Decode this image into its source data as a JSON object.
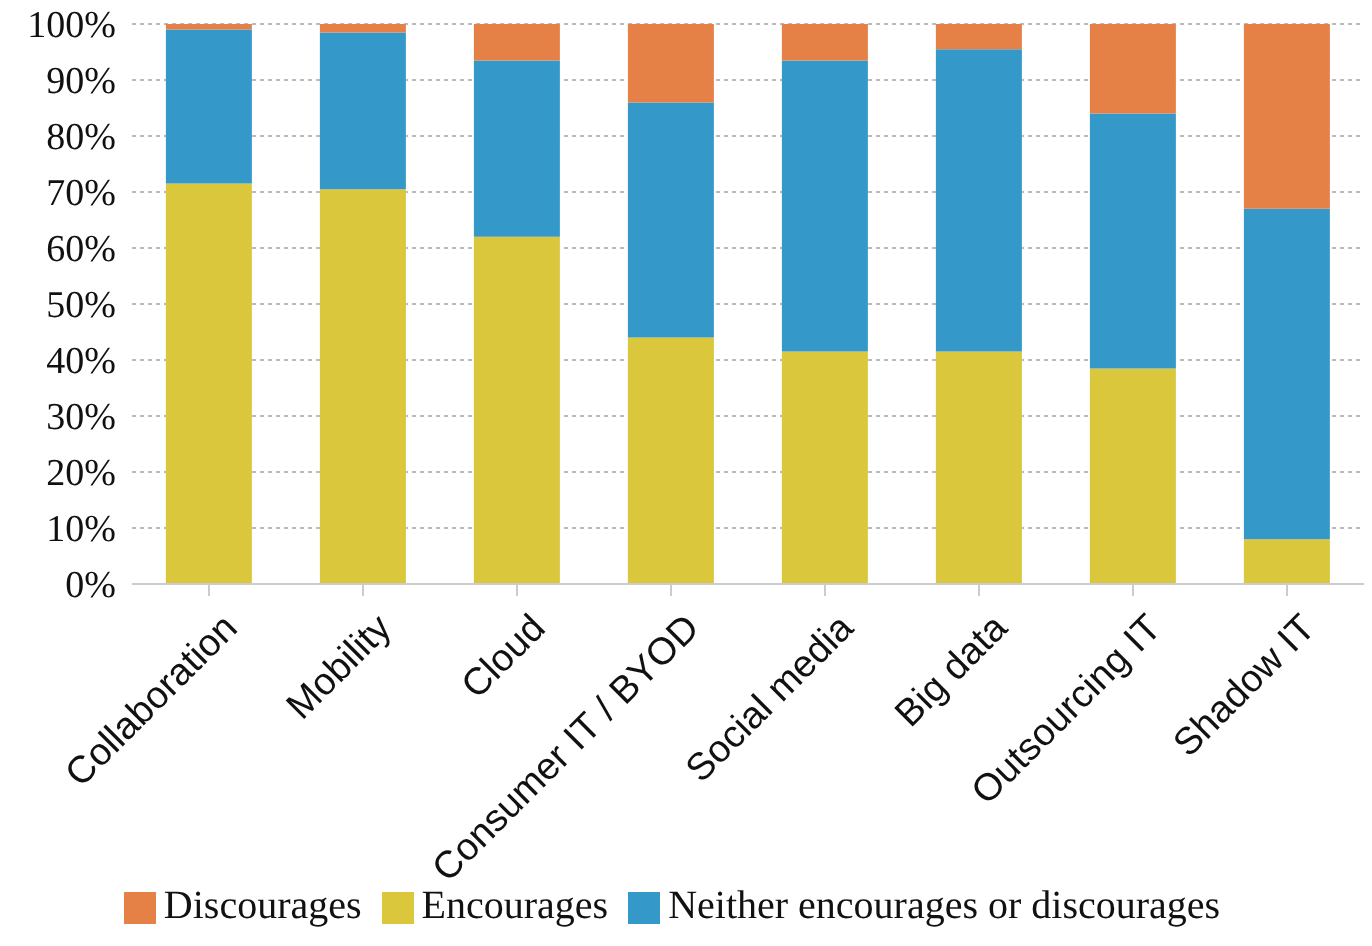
{
  "chart_data": {
    "type": "bar",
    "stacked": true,
    "categories": [
      "Collaboration",
      "Mobility",
      "Cloud",
      "Consumer IT / BYOD",
      "Social media",
      "Big data",
      "Outsourcing IT",
      "Shadow IT"
    ],
    "series": [
      {
        "name": "Encourages",
        "color": "#dbc73c",
        "values": [
          71.5,
          70.5,
          62,
          44,
          41.5,
          41.5,
          38.5,
          8
        ]
      },
      {
        "name": "Neither encourages or discourages",
        "color": "#3499c9",
        "values": [
          27.5,
          28,
          31.5,
          42,
          52,
          54,
          45.5,
          59
        ]
      },
      {
        "name": "Discourages",
        "color": "#e58047",
        "values": [
          1,
          1.5,
          6.5,
          14,
          6.5,
          4.5,
          16,
          33
        ]
      }
    ],
    "ylim": [
      0,
      100
    ],
    "yticks": [
      {
        "value": 0,
        "label": "0%"
      },
      {
        "value": 10,
        "label": "10%"
      },
      {
        "value": 20,
        "label": "20%"
      },
      {
        "value": 30,
        "label": "30%"
      },
      {
        "value": 40,
        "label": "40%"
      },
      {
        "value": 50,
        "label": "50%"
      },
      {
        "value": 60,
        "label": "60%"
      },
      {
        "value": 70,
        "label": "70%"
      },
      {
        "value": 80,
        "label": "80%"
      },
      {
        "value": 90,
        "label": "90%"
      },
      {
        "value": 100,
        "label": "100%"
      }
    ],
    "grid": "y",
    "legend": "bottom"
  }
}
